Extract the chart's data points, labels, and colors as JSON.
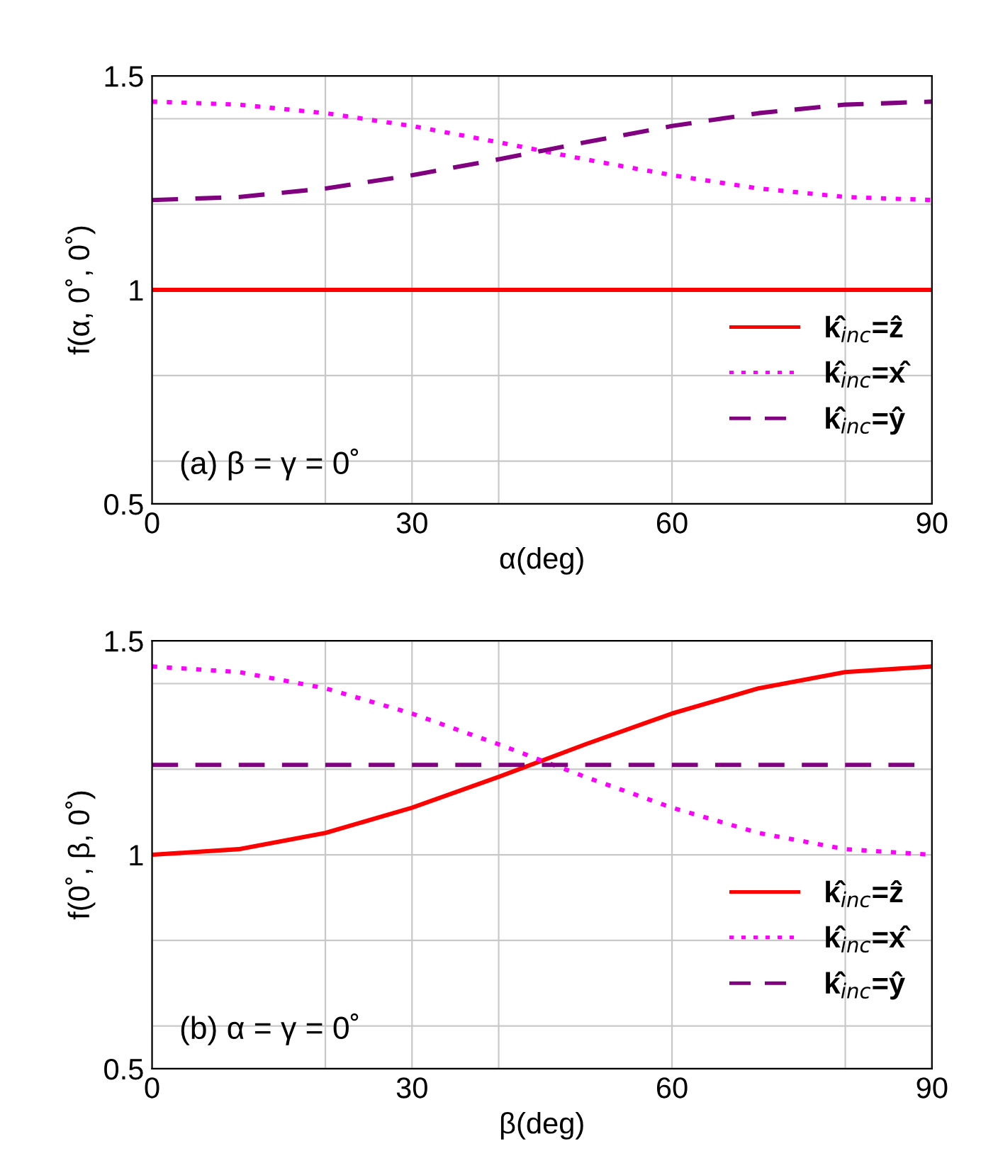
{
  "chart_data": [
    {
      "type": "line",
      "xlabel": "α(deg)",
      "ylabel": "f(α, 0˚, 0˚)",
      "annotations": [
        "(a) β = γ = 0˚"
      ],
      "x": [
        0,
        10,
        20,
        30,
        40,
        50,
        60,
        70,
        80,
        90
      ],
      "series": [
        {
          "name": "k̂$_{inc}$=ẑ",
          "color": "#ff0000",
          "line_style": "solid",
          "values": [
            1.0,
            1.0,
            1.0,
            1.0,
            1.0,
            1.0,
            1.0,
            1.0,
            1.0,
            1.0
          ]
        },
        {
          "name": "k̂$_{inc}$=x̂",
          "color": "#ff00ff",
          "line_style": "dotted",
          "values": [
            1.44,
            1.433,
            1.413,
            1.383,
            1.345,
            1.305,
            1.268,
            1.237,
            1.217,
            1.21
          ]
        },
        {
          "name": "k̂$_{inc}$=ŷ",
          "color": "#800080",
          "line_style": "dashed",
          "values": [
            1.21,
            1.217,
            1.237,
            1.268,
            1.305,
            1.345,
            1.383,
            1.413,
            1.433,
            1.44
          ]
        }
      ],
      "xlim": [
        0,
        90
      ],
      "xticks": [
        0,
        {
          "value": 20,
          "label": null
        },
        30,
        {
          "value": 40,
          "label": null
        },
        60,
        {
          "value": 80,
          "label": null
        },
        90
      ],
      "ylim": [
        0.5,
        1.5
      ],
      "yticks": [
        0.5,
        {
          "value": 0.6,
          "label": null
        },
        {
          "value": 0.8,
          "label": null
        },
        1,
        {
          "value": 1.2,
          "label": null
        },
        {
          "value": 1.4,
          "label": null
        },
        1.5
      ],
      "grid": true,
      "legend": "right"
    },
    {
      "type": "line",
      "xlabel": "β(deg)",
      "ylabel": "f(0˚, β, 0˚)",
      "annotations": [
        "(b) α = γ = 0˚"
      ],
      "x": [
        0,
        10,
        20,
        30,
        40,
        50,
        60,
        70,
        80,
        90
      ],
      "series": [
        {
          "name": "k̂$_{inc}$=ẑ",
          "color": "#ff0000",
          "line_style": "solid",
          "values": [
            1.0,
            1.013,
            1.051,
            1.11,
            1.182,
            1.258,
            1.33,
            1.389,
            1.427,
            1.44
          ]
        },
        {
          "name": "k̂$_{inc}$=x̂",
          "color": "#ff00ff",
          "line_style": "dotted",
          "values": [
            1.44,
            1.427,
            1.389,
            1.33,
            1.258,
            1.182,
            1.11,
            1.051,
            1.013,
            1.0
          ]
        },
        {
          "name": "k̂$_{inc}$=ŷ",
          "color": "#800080",
          "line_style": "dashed",
          "values": [
            1.21,
            1.21,
            1.21,
            1.21,
            1.21,
            1.21,
            1.21,
            1.21,
            1.21,
            1.21
          ]
        }
      ],
      "xlim": [
        0,
        90
      ],
      "xticks": [
        0,
        {
          "value": 20,
          "label": null
        },
        30,
        {
          "value": 40,
          "label": null
        },
        60,
        {
          "value": 80,
          "label": null
        },
        90
      ],
      "ylim": [
        0.5,
        1.5
      ],
      "yticks": [
        0.5,
        {
          "value": 0.6,
          "label": null
        },
        {
          "value": 0.8,
          "label": null
        },
        1,
        {
          "value": 1.2,
          "label": null
        },
        {
          "value": 1.4,
          "label": null
        },
        1.5
      ],
      "grid": true,
      "legend": "right"
    }
  ]
}
